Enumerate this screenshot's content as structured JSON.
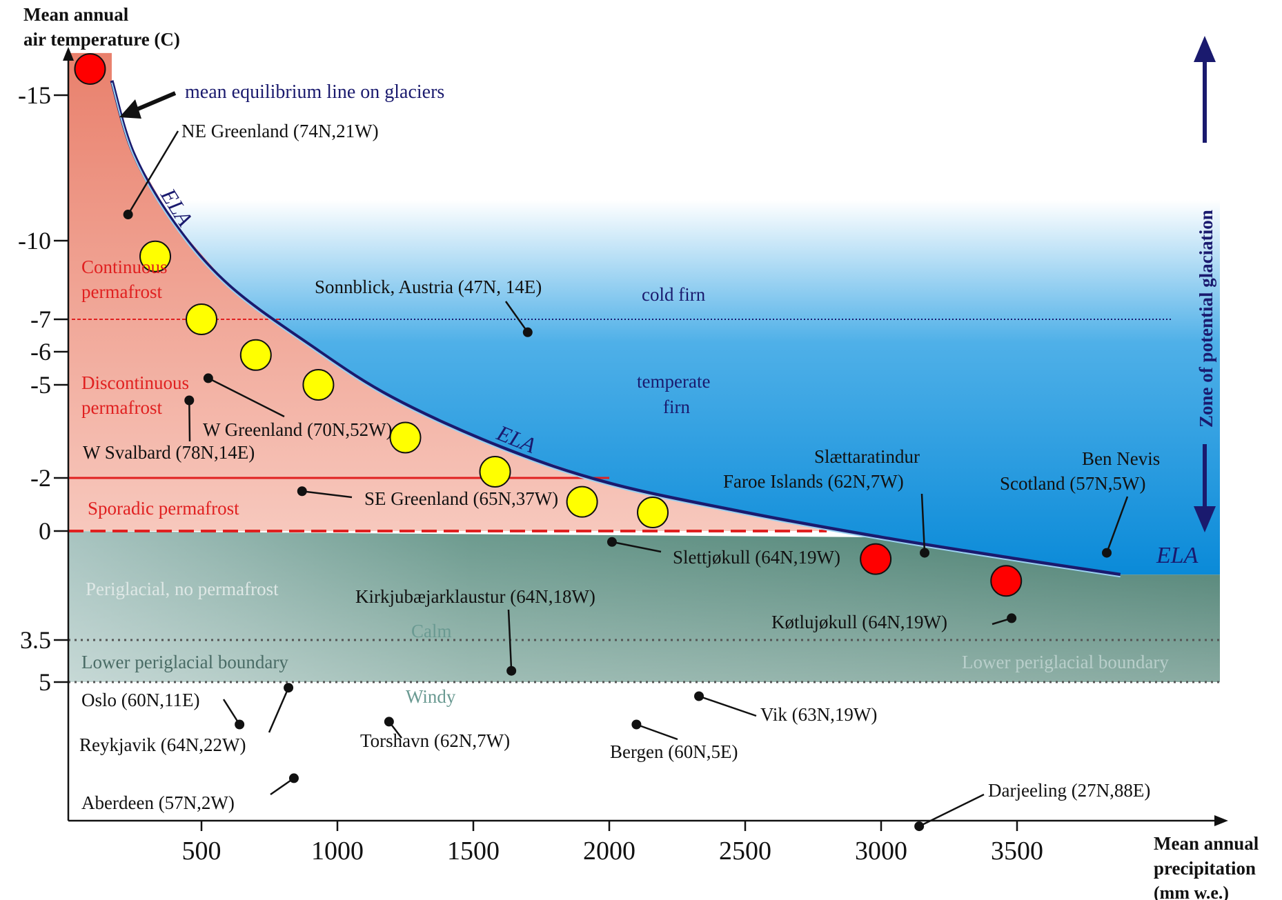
{
  "colors": {
    "ela_line": "#1a1a6e",
    "permafrost_text": "#e02020",
    "permafrost_fill": "#ea8a7a",
    "glacier_blue": "#1890dc",
    "periglacial_fill": "#4f8476",
    "red_marker": "#ff0000",
    "yellow_marker": "#ffff00",
    "point_marker": "#111111",
    "arrow": "#1a1a6e"
  },
  "chart_data": {
    "type": "scatter",
    "ylabel": "Mean annual air temperature (C)",
    "xlabel": "Mean annual precipitation (mm w.e.)",
    "x_ticks": [
      "500",
      "1000",
      "1500",
      "2000",
      "2500",
      "3000",
      "3500"
    ],
    "y_ticks": [
      "-15",
      "-10",
      "-7",
      "-6",
      "-5",
      "-2",
      "0",
      "3.5",
      "5"
    ],
    "y_reversed": true,
    "ela_curve": {
      "name": "ELA",
      "x": [
        170,
        250,
        400,
        600,
        900,
        1200,
        1600,
        2000,
        2500,
        3000,
        3500,
        3880
      ],
      "y": [
        -15.5,
        -13,
        -10.6,
        -8.3,
        -6.2,
        -4.6,
        -3,
        -1.8,
        -0.7,
        0.2,
        0.9,
        1.4
      ]
    },
    "series": [
      {
        "marker": "yellow",
        "points": [
          {
            "x": 330,
            "y": -9.4
          },
          {
            "x": 500,
            "y": -7
          },
          {
            "x": 700,
            "y": -5.9
          },
          {
            "x": 930,
            "y": -5
          },
          {
            "x": 1250,
            "y": -3.3
          },
          {
            "x": 1580,
            "y": -2.2
          },
          {
            "x": 1900,
            "y": -1.1
          },
          {
            "x": 2160,
            "y": -0.7
          }
        ]
      },
      {
        "marker": "red",
        "points": [
          {
            "x": 90,
            "y": -15.9
          },
          {
            "x": 2980,
            "y": 0.9
          },
          {
            "x": 3460,
            "y": 1.6
          }
        ]
      }
    ],
    "stations": [
      {
        "label": "NE Greenland (74N,21W)",
        "x": 230,
        "y": -10.9
      },
      {
        "label": "Sonnblick, Austria (47N, 14E)",
        "x": 1700,
        "y": -6.6
      },
      {
        "label": "W Greenland (70N,52W)",
        "x": 525,
        "y": -5.2
      },
      {
        "label": "W Svalbard (78N,14E)",
        "x": 455,
        "y": -4.5
      },
      {
        "label": "SE Greenland (65N,37W)",
        "x": 870,
        "y": -1.5
      },
      {
        "label": "Slettjøkull (64N,19W)",
        "x": 2010,
        "y": 0.35
      },
      {
        "label": "Slættaratindur Faroe Islands (62N,7W)",
        "x": 3160,
        "y": 0.7
      },
      {
        "label": "Ben Nevis Scotland (57N,5W)",
        "x": 3830,
        "y": 0.7
      },
      {
        "label": "Kirkjubæjarklaustur (64N,18W)",
        "x": 1640,
        "y": 4.6
      },
      {
        "label": "Køtlujøkull (64N,19W)",
        "x": 3480,
        "y": 2.8
      },
      {
        "label": "Oslo (60N,11E)",
        "x": 640,
        "y": 6.5
      },
      {
        "label": "Reykjavik (64N,22W)",
        "x": 820,
        "y": 5.2
      },
      {
        "label": "Torshavn (62N,7W)",
        "x": 1190,
        "y": 6.4
      },
      {
        "label": "Bergen (60N,5E)",
        "x": 2100,
        "y": 6.5
      },
      {
        "label": "Vik (63N,19W)",
        "x": 2330,
        "y": 5.5
      },
      {
        "label": "Aberdeen (57N,2W)",
        "x": 840,
        "y": 8.4
      },
      {
        "label": "Darjeeling (27N,88E)",
        "x": 3140,
        "y": 10.1
      }
    ],
    "boundaries": [
      {
        "label": "Lower periglacial boundary",
        "calm_y": 3.5,
        "windy_y": 5
      }
    ]
  },
  "labels": {
    "ela_top": "mean equilibrium line on glaciers",
    "ela_1": "ELA",
    "ela_2": "ELA",
    "ela_3": "ELA",
    "cold_firn": "cold firn",
    "temperate_firn_1": "temperate",
    "temperate_firn_2": "firn",
    "zone": "Zone of potential glaciation",
    "continuous_1": "Continuous",
    "continuous_2": "permafrost",
    "discontinuous_1": "Discontinuous",
    "discontinuous_2": "permafrost",
    "sporadic": "Sporadic permafrost",
    "periglacial": "Periglacial, no permafrost",
    "calm": "Calm",
    "windy": "Windy",
    "lower_boundary_left": "Lower periglacial boundary",
    "lower_boundary_right": "Lower periglacial boundary",
    "ylabel_1": "Mean annual",
    "ylabel_2": "air temperature (C)",
    "xlabel_1": "Mean annual",
    "xlabel_2": "precipitation",
    "xlabel_3": "(mm w.e.)",
    "ne_greenland": "NE Greenland (74N,21W)",
    "sonnblick": "Sonnblick, Austria (47N, 14E)",
    "w_greenland": "W Greenland (70N,52W)",
    "w_svalbard": "W Svalbard (78N,14E)",
    "se_greenland": "SE Greenland (65N,37W)",
    "slettjokull": "Slettjøkull (64N,19W)",
    "slaettaratindur_1": "Slættaratindur",
    "slaettaratindur_2": "Faroe Islands (62N,7W)",
    "ben_nevis_1": "Ben Nevis",
    "ben_nevis_2": "Scotland (57N,5W)",
    "kirkju": "Kirkjubæjarklaustur (64N,18W)",
    "kotlujokull": "Køtlujøkull (64N,19W)",
    "oslo": "Oslo (60N,11E)",
    "reykjavik": "Reykjavik (64N,22W)",
    "torshavn": "Torshavn (62N,7W)",
    "bergen": "Bergen (60N,5E)",
    "vik": "Vik (63N,19W)",
    "aberdeen": "Aberdeen (57N,2W)",
    "darjeeling": "Darjeeling (27N,88E)"
  }
}
